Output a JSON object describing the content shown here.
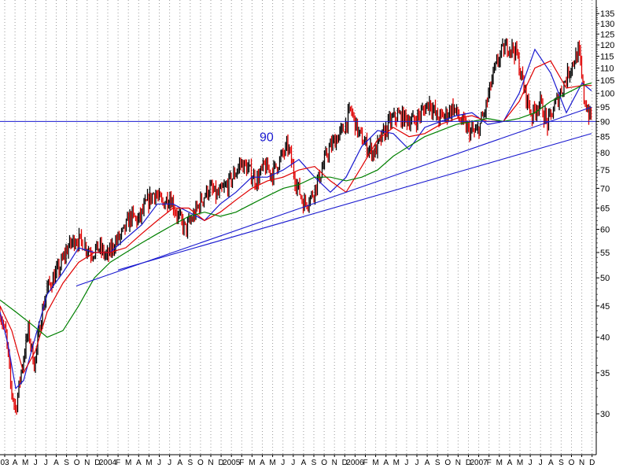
{
  "chart_data": {
    "type": "line",
    "title": "",
    "xlabel": "",
    "ylabel": "",
    "y_scale": "log",
    "ylim": [
      26,
      140
    ],
    "y_ticks": [
      30,
      35,
      40,
      45,
      50,
      55,
      60,
      65,
      70,
      75,
      80,
      85,
      90,
      95,
      100,
      105,
      110,
      115,
      120,
      125,
      130,
      135
    ],
    "x_tick_labels": [
      "03",
      "A",
      "M",
      "J",
      "J",
      "A",
      "S",
      "O",
      "N",
      "D",
      "2004",
      "F",
      "M",
      "A",
      "M",
      "J",
      "J",
      "A",
      "S",
      "O",
      "N",
      "D",
      "2005",
      "F",
      "M",
      "A",
      "M",
      "J",
      "J",
      "A",
      "S",
      "O",
      "N",
      "D",
      "2006",
      "F",
      "M",
      "A",
      "M",
      "J",
      "J",
      "A",
      "S",
      "O",
      "N",
      "D",
      "2007",
      "F",
      "M",
      "A",
      "M",
      "J",
      "J",
      "A",
      "S",
      "O",
      "N",
      "D"
    ],
    "grid": "vertical-dotted",
    "colors": {
      "price_up": "#000000",
      "price_down": "#e00000",
      "ma_short": "#1a1ad0",
      "ma_medium": "#e00000",
      "ma_long": "#008000",
      "lines": "#1a1ad0"
    },
    "series": [
      {
        "role": "price",
        "x": [
          0,
          8,
          14,
          20,
          28,
          36,
          44,
          52,
          60,
          68,
          76,
          86,
          96,
          106,
          116,
          126,
          136,
          146,
          156,
          166,
          176,
          186,
          196,
          206,
          216,
          226,
          236,
          246,
          256,
          266,
          276,
          286,
          296,
          306,
          316,
          326,
          336,
          346,
          356,
          366,
          376,
          386,
          396,
          406,
          416,
          426,
          436,
          446,
          456,
          466,
          476,
          486,
          496,
          506,
          516,
          526,
          536,
          546,
          556,
          566,
          576,
          586,
          596,
          606,
          616,
          626,
          636,
          646,
          656,
          666,
          676,
          686,
          696,
          706,
          716,
          726,
          736,
          742,
          748,
          752
        ],
        "y": [
          44,
          40,
          33,
          30.5,
          36,
          41,
          36,
          43,
          48,
          50,
          52,
          56,
          58,
          57,
          55,
          56,
          54,
          57,
          59,
          63,
          62,
          66,
          69,
          66,
          68,
          63,
          60,
          63,
          67,
          70,
          68,
          70,
          73,
          77,
          75,
          72,
          76,
          74,
          78,
          82,
          72,
          66,
          68,
          73,
          80,
          84,
          87,
          94,
          86,
          82,
          80,
          85,
          90,
          92,
          91,
          90,
          93,
          97,
          91,
          92,
          95,
          90,
          87,
          86,
          93,
          106,
          116,
          120,
          117,
          102,
          92,
          97,
          89,
          96,
          103,
          111,
          117,
          99,
          93,
          91
        ]
      },
      {
        "role": "ma_short",
        "x": [
          0,
          10,
          20,
          30,
          40,
          60,
          80,
          100,
          120,
          140,
          160,
          180,
          200,
          220,
          240,
          260,
          280,
          300,
          320,
          340,
          360,
          380,
          400,
          420,
          440,
          460,
          480,
          500,
          520,
          540,
          560,
          580,
          600,
          620,
          640,
          660,
          680,
          700,
          720,
          740,
          752
        ],
        "y": [
          44,
          39,
          33,
          34,
          38,
          47,
          51,
          56,
          55,
          55,
          58,
          61,
          66,
          66,
          64,
          62,
          66,
          69,
          73,
          73,
          75,
          78,
          73,
          69,
          73,
          82,
          87,
          86,
          81,
          88,
          90,
          92,
          93,
          89,
          90,
          100,
          118,
          108,
          93,
          104,
          101
        ]
      },
      {
        "role": "ma_medium",
        "x": [
          0,
          15,
          30,
          45,
          60,
          80,
          100,
          120,
          140,
          160,
          180,
          200,
          220,
          240,
          260,
          280,
          300,
          320,
          340,
          360,
          380,
          400,
          420,
          440,
          460,
          480,
          500,
          520,
          540,
          560,
          580,
          600,
          620,
          640,
          660,
          680,
          700,
          720,
          740,
          752
        ],
        "y": [
          45,
          41,
          35,
          38,
          44,
          49,
          53,
          55,
          55,
          56,
          59,
          62,
          65,
          65,
          62,
          64,
          67,
          70,
          72,
          73,
          75,
          76,
          72,
          69,
          76,
          84,
          88,
          85,
          86,
          89,
          91,
          92,
          90,
          90,
          97,
          110,
          113,
          102,
          103,
          103
        ]
      },
      {
        "role": "ma_long",
        "x": [
          0,
          20,
          40,
          60,
          80,
          100,
          120,
          140,
          160,
          180,
          200,
          220,
          240,
          260,
          280,
          300,
          320,
          340,
          360,
          380,
          400,
          420,
          440,
          460,
          480,
          500,
          520,
          540,
          560,
          580,
          600,
          620,
          640,
          660,
          680,
          700,
          720,
          740,
          752
        ],
        "y": [
          46,
          44,
          42,
          40,
          41,
          45,
          50,
          53,
          55,
          57,
          59,
          61,
          63,
          64,
          63,
          64,
          66,
          68,
          70,
          71,
          73,
          73,
          72,
          73,
          75,
          79,
          82,
          85,
          87,
          89,
          90,
          91,
          90,
          91,
          93,
          97,
          100,
          103,
          104
        ]
      }
    ],
    "trend_lines": [
      {
        "x": [
          97,
          752
        ],
        "y": [
          48.5,
          95
        ]
      },
      {
        "x": [
          150,
          752
        ],
        "y": [
          51.5,
          86
        ]
      }
    ],
    "horizontal_lines": [
      {
        "y": 90,
        "label": "90"
      }
    ]
  }
}
